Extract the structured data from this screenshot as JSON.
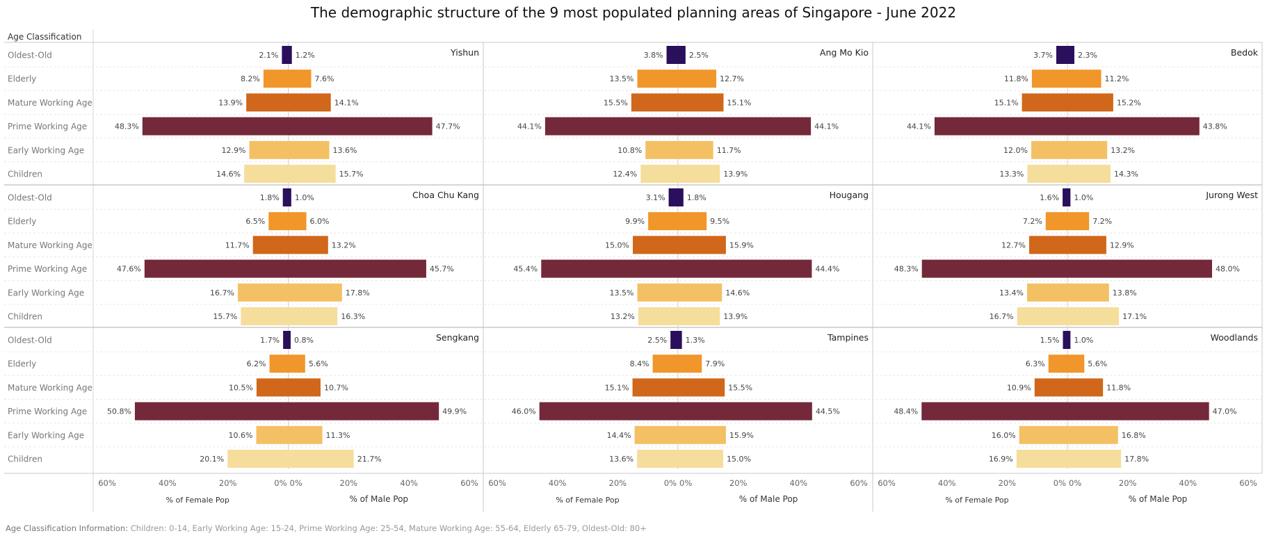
{
  "title": "The demographic structure of the 9 most populated planning areas of Singapore - June 2022",
  "row_header": "Age Classification",
  "footnote_label": "Age Classification Information:",
  "footnote_text": "Children: 0-14, Early Working Age: 15-24, Prime Working Age: 25-54, Mature Working Age: 55-64, Elderly 65-79, Oldest-Old: 80+",
  "colors": {
    "Oldest-Old": "#2a0f5c",
    "Elderly": "#f0962a",
    "Mature Working Age": "#d0671a",
    "Prime Working Age": "#73293a",
    "Early Working Age": "#f4c064",
    "Children": "#f5de9c"
  },
  "chart_data": {
    "type": "bar",
    "orientation": "horizontal",
    "categories": [
      "Oldest-Old",
      "Elderly",
      "Mature Working Age",
      "Prime Working Age",
      "Early Working Age",
      "Children"
    ],
    "xlim": [
      -60,
      60
    ],
    "x_ticks_female": [
      "60%",
      "40%",
      "20%",
      "0%"
    ],
    "x_ticks_male": [
      "0%",
      "20%",
      "40%",
      "60%"
    ],
    "xlabel_female": "% of Female Pop",
    "xlabel_male": "% of Male Pop",
    "panels": [
      {
        "area": "Yishun",
        "female": [
          2.1,
          8.2,
          13.9,
          48.3,
          12.9,
          14.6
        ],
        "male": [
          1.2,
          7.6,
          14.1,
          47.7,
          13.6,
          15.7
        ]
      },
      {
        "area": "Ang Mo Kio",
        "female": [
          3.8,
          13.5,
          15.5,
          44.1,
          10.8,
          12.4
        ],
        "male": [
          2.5,
          12.7,
          15.1,
          44.1,
          11.7,
          13.9
        ]
      },
      {
        "area": "Bedok",
        "female": [
          3.7,
          11.8,
          15.1,
          44.1,
          12.0,
          13.3
        ],
        "male": [
          2.3,
          11.2,
          15.2,
          43.8,
          13.2,
          14.3
        ]
      },
      {
        "area": "Choa Chu Kang",
        "female": [
          1.8,
          6.5,
          11.7,
          47.6,
          16.7,
          15.7
        ],
        "male": [
          1.0,
          6.0,
          13.2,
          45.7,
          17.8,
          16.3
        ]
      },
      {
        "area": "Hougang",
        "female": [
          3.1,
          9.9,
          15.0,
          45.4,
          13.5,
          13.2
        ],
        "male": [
          1.8,
          9.5,
          15.9,
          44.4,
          14.6,
          13.9
        ]
      },
      {
        "area": "Jurong West",
        "female": [
          1.6,
          7.2,
          12.7,
          48.3,
          13.4,
          16.7
        ],
        "male": [
          1.0,
          7.2,
          12.9,
          48.0,
          13.8,
          17.1
        ]
      },
      {
        "area": "Sengkang",
        "female": [
          1.7,
          6.2,
          10.5,
          50.8,
          10.6,
          20.1
        ],
        "male": [
          0.8,
          5.6,
          10.7,
          49.9,
          11.3,
          21.7
        ]
      },
      {
        "area": "Tampines",
        "female": [
          2.5,
          8.4,
          15.1,
          46.0,
          14.4,
          13.6
        ],
        "male": [
          1.3,
          7.9,
          15.5,
          44.5,
          15.9,
          15.0
        ]
      },
      {
        "area": "Woodlands",
        "female": [
          1.5,
          6.3,
          10.9,
          48.4,
          16.0,
          16.9
        ],
        "male": [
          1.0,
          5.6,
          11.8,
          47.0,
          16.8,
          17.8
        ]
      }
    ]
  }
}
